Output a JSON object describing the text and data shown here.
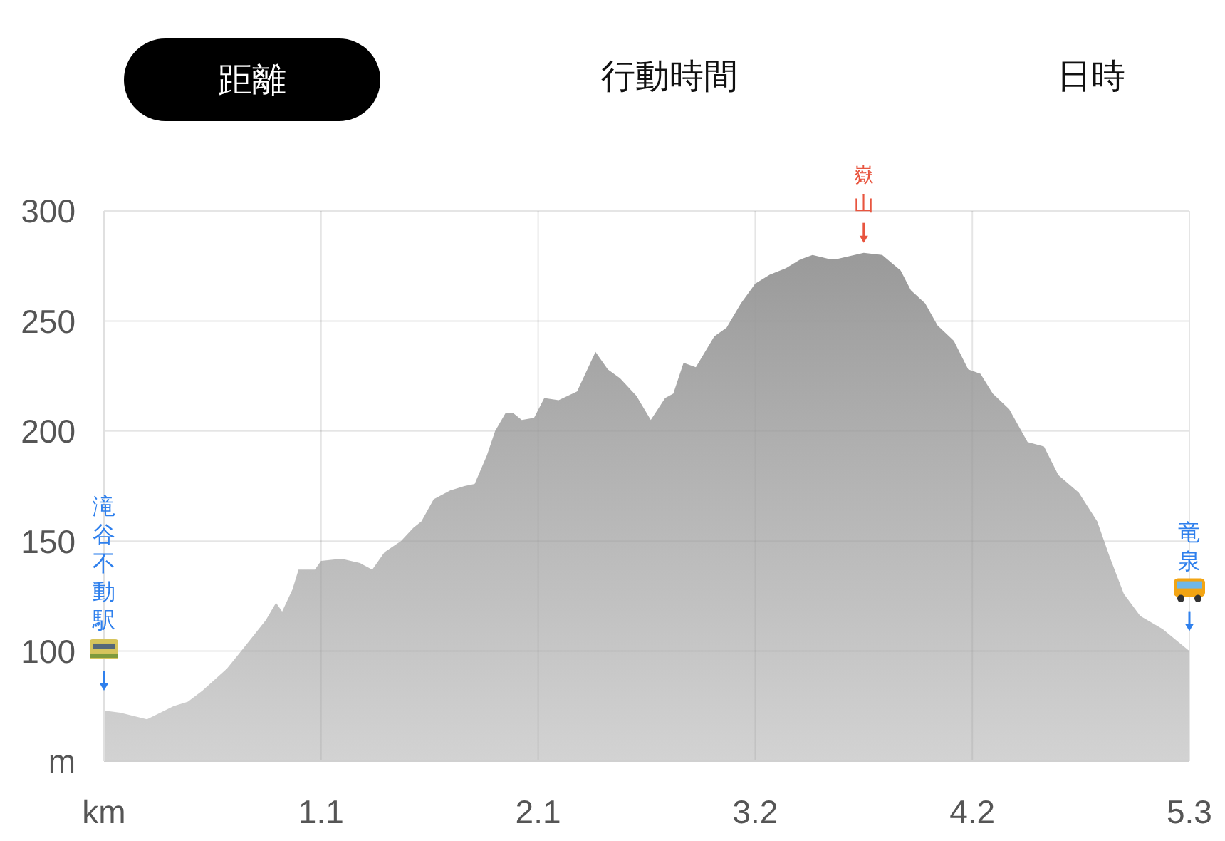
{
  "chart_data": {
    "type": "area",
    "annotations": [
      "距離",
      "行動時間",
      "日時",
      "滝谷不動駅",
      {
        "text": "嶽山",
        "x": 3.71,
        "y": 281
      },
      "竜泉"
    ],
    "x": [
      0,
      0.08,
      0.21,
      0.34,
      0.41,
      0.48,
      0.6,
      0.67,
      0.79,
      0.84,
      0.87,
      0.92,
      0.95,
      1.0,
      1.03,
      1.06,
      1.16,
      1.25,
      1.31,
      1.37,
      1.45,
      1.51,
      1.55,
      1.61,
      1.69,
      1.76,
      1.81,
      1.87,
      1.91,
      1.96,
      2.0,
      2.04,
      2.1,
      2.15,
      2.22,
      2.31,
      2.34,
      2.4,
      2.46,
      2.52,
      2.6,
      2.67,
      2.74,
      2.78,
      2.83,
      2.89,
      2.98,
      3.04,
      3.11,
      3.18,
      3.25,
      3.33,
      3.4,
      3.46,
      3.55,
      3.57,
      3.71,
      3.8,
      3.89,
      3.94,
      4.01,
      4.07,
      4.15,
      4.22,
      4.28,
      4.34,
      4.42,
      4.51,
      4.59,
      4.66,
      4.76,
      4.85,
      4.91,
      4.98,
      5.06,
      5.17,
      5.3
    ],
    "values": [
      73,
      72,
      69,
      75,
      77,
      82,
      92,
      100,
      114,
      122,
      118,
      128,
      137,
      137,
      137,
      141,
      142,
      140,
      137,
      145,
      150,
      156,
      159,
      169,
      173,
      175,
      176,
      189,
      200,
      208,
      208,
      205,
      206,
      215,
      214,
      218,
      224,
      236,
      228,
      224,
      216,
      205,
      215,
      217,
      231,
      229,
      243,
      247,
      258,
      267,
      271,
      274,
      278,
      280,
      278,
      278,
      281,
      280,
      273,
      264,
      258,
      248,
      241,
      228,
      226,
      217,
      210,
      195,
      193,
      180,
      172,
      159,
      143,
      126,
      116,
      110,
      100
    ],
    "color": "#9a9a9a",
    "xlim": [
      0,
      5.3
    ],
    "ylim": [
      50,
      300
    ],
    "xticks": [
      {
        "value": 0,
        "label": "km"
      },
      {
        "value": 1.06,
        "label": "1.1"
      },
      {
        "value": 2.12,
        "label": "2.1"
      },
      {
        "value": 3.18,
        "label": "3.2"
      },
      {
        "value": 4.24,
        "label": "4.2"
      },
      5.3
    ],
    "yticks": [
      {
        "value": 50,
        "label": "m"
      },
      100,
      150,
      200,
      250,
      300
    ],
    "grid": true
  }
}
